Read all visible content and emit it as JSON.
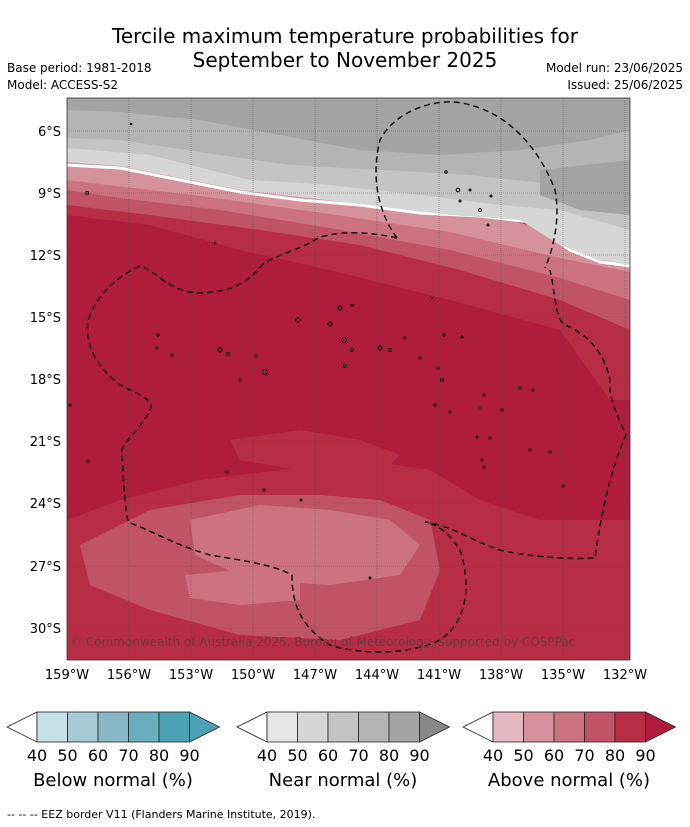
{
  "title_line1": "Tercile maximum temperature probabilities for",
  "title_line2": "September to November 2025",
  "base_period": "Base period: 1981-2018",
  "model": "Model: ACCESS-S2",
  "model_run": "Model run: 23/06/2025",
  "issued": "Issued: 25/06/2025",
  "copyright": "© Commonwealth of Australia 2025, Bureau of Meteorology, supported by COSPPac",
  "lat_labels": [
    "6°S",
    "9°S",
    "12°S",
    "15°S",
    "18°S",
    "21°S",
    "24°S",
    "27°S",
    "30°S"
  ],
  "lon_labels": [
    "159°W",
    "156°W",
    "153°W",
    "150°W",
    "147°W",
    "144°W",
    "141°W",
    "138°W",
    "135°W",
    "132°W"
  ],
  "legends": [
    {
      "label": "Below normal (%)",
      "ticks": [
        "40",
        "50",
        "60",
        "70",
        "80",
        "90"
      ],
      "colors": [
        "#ffffff",
        "#c8e0e8",
        "#a8cad4",
        "#88b8c6",
        "#68aebe",
        "#4aa2b4"
      ]
    },
    {
      "label": "Near normal (%)",
      "ticks": [
        "40",
        "50",
        "60",
        "70",
        "80",
        "90"
      ],
      "colors": [
        "#ffffff",
        "#e6e6e6",
        "#d6d6d6",
        "#c4c4c4",
        "#b4b4b4",
        "#a4a4a4",
        "#888888"
      ]
    },
    {
      "label": "Above normal (%)",
      "ticks": [
        "40",
        "50",
        "60",
        "70",
        "80",
        "90"
      ],
      "colors": [
        "#ffffff",
        "#e4b8c0",
        "#d6929c",
        "#cc7280",
        "#c05466",
        "#b82d46",
        "#b01c3c"
      ]
    }
  ],
  "footnote": "--  --  -- EEZ border V11 (Flanders Marine Institute, 2019).",
  "colors": {
    "above_90": "#b01c3c",
    "above_80": "#b82d46",
    "above_70": "#c05466",
    "above_60": "#cc7280",
    "above_50": "#d6929c",
    "near_90": "#a4a4a4",
    "near_80": "#b4b4b4",
    "near_70": "#c4c4c4",
    "near_60": "#d6d6d6"
  }
}
